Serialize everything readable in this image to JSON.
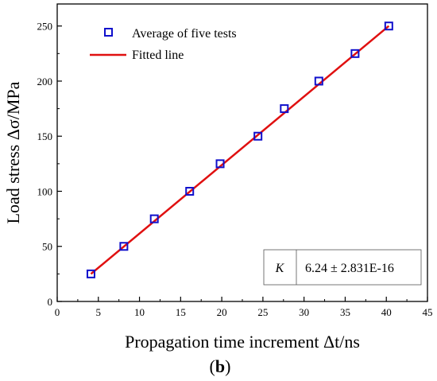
{
  "chart_data": {
    "type": "scatter",
    "xlabel": "Propagation time increment Δt/ns",
    "ylabel": "Load stress Δσ/MPa",
    "panel_label": "b",
    "panel_label_open": "(",
    "panel_label_close": ")",
    "xlim": [
      0,
      45
    ],
    "ylim": [
      0,
      270
    ],
    "x_ticks": [
      0,
      5,
      10,
      15,
      20,
      25,
      30,
      35,
      40,
      45
    ],
    "y_ticks": [
      0,
      50,
      100,
      150,
      200,
      250
    ],
    "series": [
      {
        "name": "Average of five tests",
        "kind": "markers",
        "marker": "open-square",
        "color": "#1010cc",
        "x": [
          4.1,
          8.1,
          11.8,
          16.1,
          19.8,
          24.4,
          27.6,
          31.8,
          36.2,
          40.3
        ],
        "y": [
          25,
          50,
          75,
          100,
          125,
          150,
          175,
          200,
          225,
          250
        ]
      },
      {
        "name": "Fitted line",
        "kind": "line",
        "color": "#e01010",
        "x": [
          4.1,
          40.3
        ],
        "y": [
          25,
          250
        ]
      }
    ],
    "annotation": {
      "label": "K",
      "value": "6.24 ± 2.831E-16"
    },
    "legend_position": "top-left"
  }
}
